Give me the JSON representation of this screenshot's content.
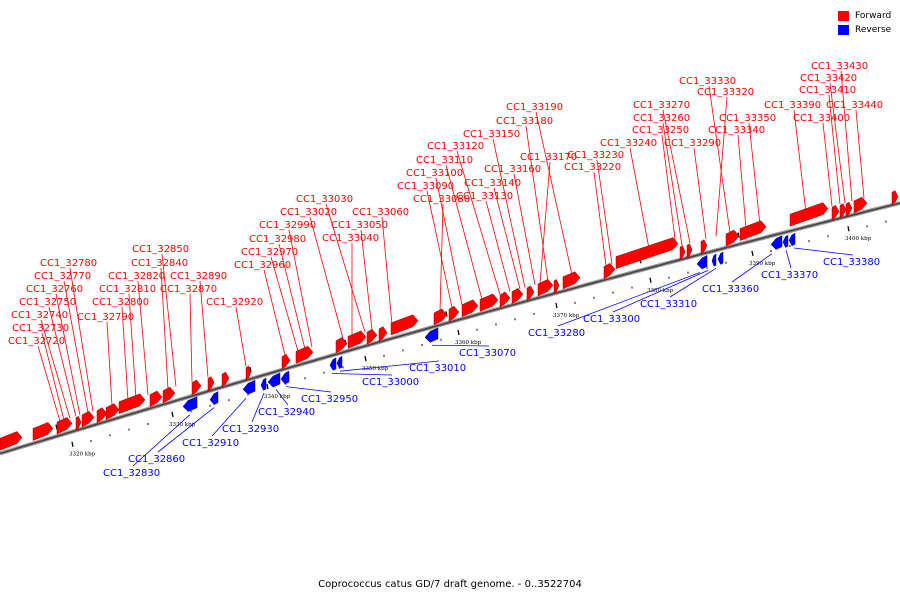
{
  "legend": {
    "forward_label": "Forward",
    "reverse_label": "Reverse",
    "forward_color": "#ff0000",
    "reverse_color": "#0000ff"
  },
  "caption": "Coprococcus catus GD/7 draft genome. - 0..3522704",
  "axis": {
    "unit": "kbp",
    "tick_labels": [
      "3320 kbp",
      "3330 kbp",
      "3340 kbp",
      "3350 kbp",
      "3360 kbp",
      "3370 kbp",
      "3380 kbp",
      "3390 kbp",
      "3400 kbp"
    ]
  },
  "genes_forward": [
    "CC1_32720",
    "CC1_32730",
    "CC1_32740",
    "CC1_32750",
    "CC1_32760",
    "CC1_32770",
    "CC1_32780",
    "CC1_32790",
    "CC1_32800",
    "CC1_32810",
    "CC1_32820",
    "CC1_32840",
    "CC1_32850",
    "CC1_32870",
    "CC1_32890",
    "CC1_32920",
    "CC1_32960",
    "CC1_32970",
    "CC1_32980",
    "CC1_32990",
    "CC1_33020",
    "CC1_33030",
    "CC1_33040",
    "CC1_33050",
    "CC1_33060",
    "CC1_33080",
    "CC1_33090",
    "CC1_33100",
    "CC1_33110",
    "CC1_33120",
    "CC1_33130",
    "CC1_33140",
    "CC1_33150",
    "CC1_33160",
    "CC1_33170",
    "CC1_33180",
    "CC1_33190",
    "CC1_33220",
    "CC1_33230",
    "CC1_33240",
    "CC1_33250",
    "CC1_33260",
    "CC1_33270",
    "CC1_33290",
    "CC1_33320",
    "CC1_33330",
    "CC1_33340",
    "CC1_33350",
    "CC1_33390",
    "CC1_33400",
    "CC1_33410",
    "CC1_33420",
    "CC1_33430",
    "CC1_33440"
  ],
  "genes_reverse": [
    "CC1_32830",
    "CC1_32860",
    "CC1_32910",
    "CC1_32930",
    "CC1_32940",
    "CC1_32950",
    "CC1_33000",
    "CC1_33010",
    "CC1_33070",
    "CC1_33280",
    "CC1_33300",
    "CC1_33310",
    "CC1_33360",
    "CC1_33370",
    "CC1_33380"
  ]
}
